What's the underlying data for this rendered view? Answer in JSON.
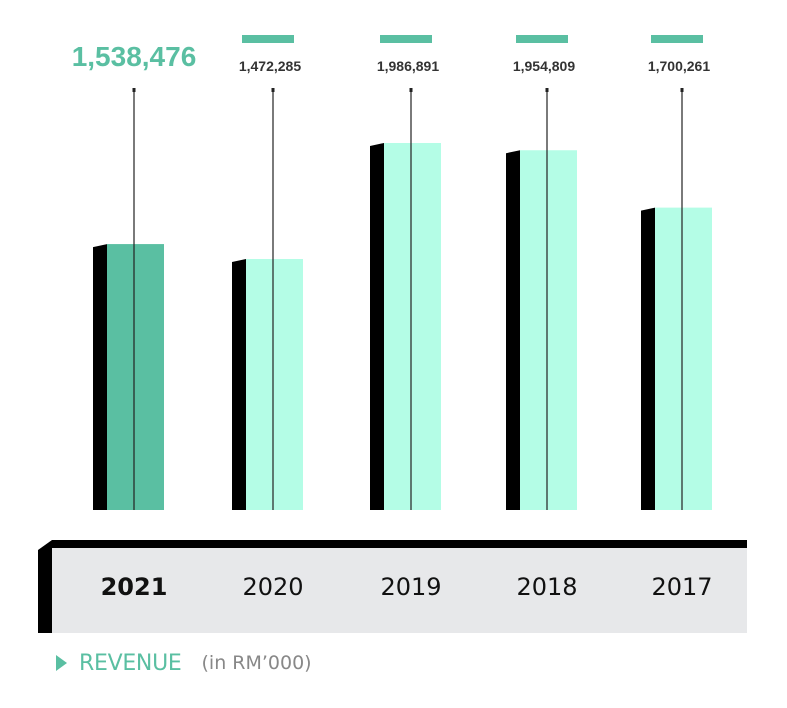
{
  "chart_data": {
    "type": "bar",
    "categories": [
      "2021",
      "2020",
      "2019",
      "2018",
      "2017"
    ],
    "values": [
      1538476,
      1472285,
      1986891,
      1954809,
      1700261
    ],
    "value_labels": [
      "1,538,476",
      "1,472,285",
      "1,986,891",
      "1,954,809",
      "1,700,261"
    ],
    "highlight_index": 0,
    "title": "REVENUE",
    "unit": "(in RM’000)",
    "grid": false
  },
  "colors": {
    "highlight": "#5abfa2",
    "bar": "#b4fde6",
    "shadow": "#000000",
    "band": "#e7e8ea"
  }
}
